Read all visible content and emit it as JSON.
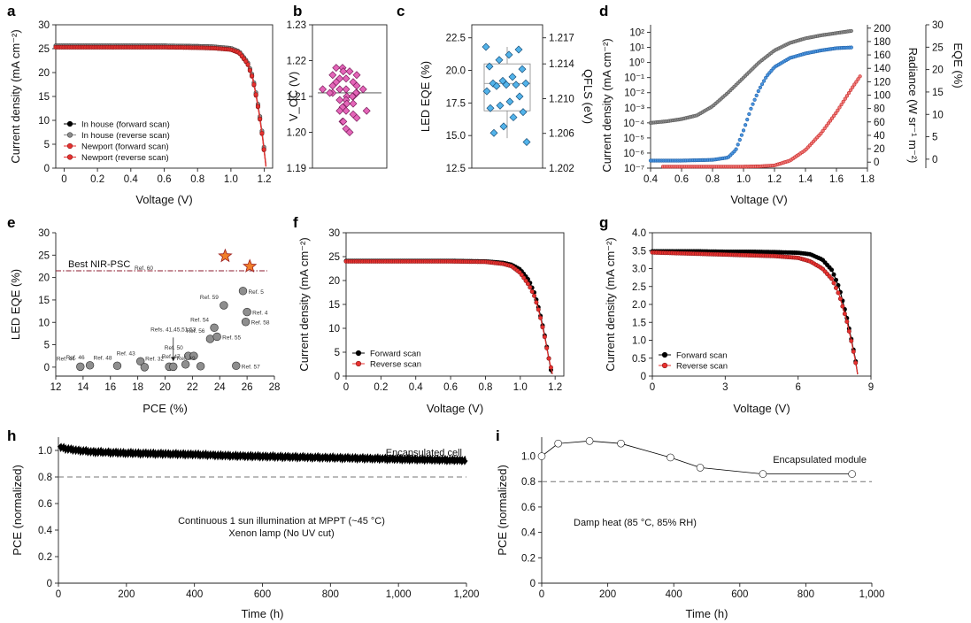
{
  "figure": {
    "panels": [
      "a",
      "b",
      "c",
      "d",
      "e",
      "f",
      "g",
      "h",
      "i"
    ]
  },
  "chart_data": [
    {
      "panel": "a",
      "type": "line",
      "xlabel": "Voltage (V)",
      "ylabel": "Current density (mA cm⁻²)",
      "xlim": [
        -0.05,
        1.25
      ],
      "ylim": [
        0,
        30
      ],
      "xticks": [
        "0",
        "0.2",
        "0.4",
        "0.6",
        "0.8",
        "1.0",
        "1.2"
      ],
      "yticks": [
        "0",
        "5",
        "10",
        "15",
        "20",
        "25",
        "30"
      ],
      "legend": "lower-left",
      "series": [
        {
          "name": "In house (forward scan)",
          "color": "#000000",
          "x": [
            -0.05,
            0,
            0.2,
            0.4,
            0.6,
            0.8,
            0.9,
            1.0,
            1.05,
            1.1,
            1.13,
            1.15,
            1.17,
            1.19,
            1.2,
            1.21
          ],
          "y": [
            25.6,
            25.6,
            25.6,
            25.6,
            25.6,
            25.5,
            25.4,
            25.0,
            24.3,
            22.0,
            19.0,
            15.5,
            11.5,
            6.5,
            3.5,
            0.5
          ]
        },
        {
          "name": "In house (reverse scan)",
          "color": "#8c8c8c",
          "x": [
            -0.05,
            0,
            0.2,
            0.4,
            0.6,
            0.8,
            0.9,
            1.0,
            1.05,
            1.1,
            1.13,
            1.15,
            1.17,
            1.19,
            1.2,
            1.21
          ],
          "y": [
            25.6,
            25.6,
            25.6,
            25.6,
            25.6,
            25.5,
            25.4,
            25.1,
            24.4,
            22.2,
            19.3,
            15.8,
            11.8,
            6.8,
            3.8,
            0.6
          ]
        },
        {
          "name": "Newport (forward scan)",
          "color": "#e8312f",
          "x": [
            -0.05,
            0,
            0.2,
            0.4,
            0.6,
            0.8,
            0.9,
            1.0,
            1.05,
            1.1,
            1.13,
            1.15,
            1.17,
            1.19,
            1.2,
            1.21
          ],
          "y": [
            25.3,
            25.3,
            25.3,
            25.3,
            25.3,
            25.2,
            25.1,
            24.8,
            24.1,
            21.8,
            18.8,
            15.2,
            11.2,
            6.2,
            3.2,
            0.3
          ]
        },
        {
          "name": "Newport (reverse scan)",
          "color": "#e8312f",
          "x": [
            -0.05,
            0,
            0.2,
            0.4,
            0.6,
            0.8,
            0.9,
            1.0,
            1.05,
            1.1,
            1.13,
            1.15,
            1.17,
            1.19,
            1.2,
            1.21
          ],
          "y": [
            25.3,
            25.3,
            25.3,
            25.3,
            25.3,
            25.2,
            25.1,
            24.8,
            24.2,
            21.9,
            18.9,
            15.4,
            11.3,
            6.3,
            3.3,
            0.4
          ]
        }
      ]
    },
    {
      "panel": "b",
      "type": "scatter",
      "ylabel": "V_OC (V)",
      "ylim": [
        1.19,
        1.23
      ],
      "yticks": [
        "1.19",
        "1.20",
        "1.21",
        "1.22",
        "1.23"
      ],
      "values": [
        1.218,
        1.218,
        1.217,
        1.217,
        1.216,
        1.216,
        1.215,
        1.215,
        1.214,
        1.213,
        1.213,
        1.212,
        1.212,
        1.212,
        1.211,
        1.211,
        1.211,
        1.211,
        1.21,
        1.21,
        1.21,
        1.209,
        1.209,
        1.208,
        1.208,
        1.207,
        1.206,
        1.206,
        1.205,
        1.204,
        1.203,
        1.201,
        1.2,
        1.203,
        1.206,
        1.212,
        1.214
      ]
    },
    {
      "panel": "c",
      "type": "scatter",
      "ylabel": "LED EQE (%)",
      "ylabel_right": "QFLS (eV)",
      "ylim": [
        12.5,
        23.5
      ],
      "ylim_right": [
        1.202,
        1.2185
      ],
      "yticks": [
        "12.5",
        "15.0",
        "17.5",
        "20.0",
        "22.5"
      ],
      "yticks_right": [
        "1.202",
        "1.206",
        "1.210",
        "1.214",
        "1.217"
      ],
      "box": {
        "q1": 16.9,
        "median": 19.0,
        "q3": 20.5,
        "whisker_low": 14.8,
        "whisker_high": 21.8
      },
      "values": [
        21.8,
        21.6,
        21.2,
        20.8,
        20.3,
        20.1,
        19.5,
        19.2,
        19.0,
        19.0,
        18.9,
        18.9,
        18.8,
        18.4,
        18.0,
        17.6,
        17.3,
        17.1,
        16.8,
        16.4,
        15.7,
        15.2,
        14.5
      ]
    },
    {
      "panel": "d",
      "type": "line",
      "xlabel": "Voltage (V)",
      "ylabel": "Current density (mA cm⁻²)",
      "ylabel_right1": "Radiance (W sr⁻¹ m⁻²)",
      "ylabel_right2": "EQE (%)",
      "xlim": [
        0.4,
        1.8
      ],
      "ylim_log": [
        -7,
        2.5
      ],
      "xticks": [
        "0.4",
        "0.6",
        "0.8",
        "1.0",
        "1.2",
        "1.4",
        "1.6",
        "1.8"
      ],
      "yticks": [
        "10⁻⁷",
        "10⁻⁶",
        "10⁻⁵",
        "10⁻⁴",
        "10⁻³",
        "10⁻²",
        "10⁻¹",
        "10⁰",
        "10¹",
        "10²"
      ],
      "yticks_right1": [
        "0",
        "20",
        "40",
        "60",
        "80",
        "100",
        "120",
        "140",
        "160",
        "180",
        "200"
      ],
      "yticks_right2": [
        "0",
        "5",
        "10",
        "15",
        "20",
        "25",
        "30"
      ],
      "series": [
        {
          "name": "Current density",
          "color": "#6b6b6b",
          "x": [
            0.4,
            0.5,
            0.6,
            0.7,
            0.8,
            0.9,
            1.0,
            1.1,
            1.2,
            1.3,
            1.4,
            1.5,
            1.6,
            1.7
          ],
          "log10_y": [
            -4.0,
            -3.9,
            -3.75,
            -3.5,
            -2.9,
            -2.0,
            -1.0,
            0.0,
            0.8,
            1.3,
            1.6,
            1.8,
            1.95,
            2.1
          ]
        },
        {
          "name": "EQE",
          "color": "#2f7fd8",
          "x": [
            0.4,
            0.6,
            0.8,
            0.9,
            0.95,
            1.0,
            1.05,
            1.1,
            1.15,
            1.2,
            1.3,
            1.4,
            1.5,
            1.6,
            1.7
          ],
          "log10_y": [
            -6.5,
            -6.5,
            -6.45,
            -6.3,
            -5.8,
            -4.5,
            -3.0,
            -1.8,
            -0.9,
            -0.3,
            0.3,
            0.6,
            0.8,
            0.95,
            1.0
          ]
        },
        {
          "name": "Radiance",
          "color": "#e8312f",
          "x": [
            0.48,
            0.8,
            1.0,
            1.1,
            1.2,
            1.3,
            1.4,
            1.5,
            1.6,
            1.7,
            1.76
          ],
          "log10_y": [
            -6.9,
            -6.9,
            -6.9,
            -6.88,
            -6.82,
            -6.5,
            -5.8,
            -4.7,
            -3.3,
            -1.7,
            -0.8
          ]
        }
      ]
    },
    {
      "panel": "e",
      "type": "scatter",
      "xlabel": "PCE (%)",
      "ylabel": "LED EQE (%)",
      "xlim": [
        12,
        28
      ],
      "ylim": [
        -2,
        30
      ],
      "xticks": [
        "12",
        "14",
        "16",
        "18",
        "20",
        "22",
        "24",
        "26",
        "28"
      ],
      "yticks": [
        "0",
        "5",
        "10",
        "15",
        "20",
        "25",
        "30"
      ],
      "reference_line": {
        "label": "Best NIR-PSC",
        "ref": "Ref. 60",
        "y": 21.5
      },
      "stars": [
        {
          "x": 24.4,
          "y": 24.8
        },
        {
          "x": 26.2,
          "y": 22.5
        }
      ],
      "points": [
        {
          "x": 13.8,
          "y": 0.1,
          "label": "Ref. 44"
        },
        {
          "x": 14.5,
          "y": 0.4,
          "label": "Ref. 46"
        },
        {
          "x": 16.5,
          "y": 0.3,
          "label": "Ref. 48"
        },
        {
          "x": 18.2,
          "y": 1.3,
          "label": "Ref. 43"
        },
        {
          "x": 18.5,
          "y": 0.0,
          "label": ""
        },
        {
          "x": 20.3,
          "y": 0.1,
          "label": "Ref. 32"
        },
        {
          "x": 20.6,
          "y": 0.1,
          "label": "Refs. 41,45,51,53"
        },
        {
          "x": 21.5,
          "y": 0.6,
          "label": "Ref. 47"
        },
        {
          "x": 21.7,
          "y": 2.5,
          "label": "Ref. 50"
        },
        {
          "x": 22.1,
          "y": 2.5,
          "label": ""
        },
        {
          "x": 22.6,
          "y": 0.2,
          "label": "Ref. 49"
        },
        {
          "x": 23.3,
          "y": 6.3,
          "label": "Ref. 56"
        },
        {
          "x": 23.6,
          "y": 8.8,
          "label": "Ref. 54"
        },
        {
          "x": 23.8,
          "y": 6.8,
          "label": "Ref. 55"
        },
        {
          "x": 24.3,
          "y": 13.8,
          "label": "Ref. 59"
        },
        {
          "x": 25.2,
          "y": 0.3,
          "label": "Ref. 57"
        },
        {
          "x": 25.7,
          "y": 17.0,
          "label": "Ref. 5"
        },
        {
          "x": 25.9,
          "y": 10.1,
          "label": "Ref. 58"
        },
        {
          "x": 26.0,
          "y": 12.3,
          "label": "Ref. 4"
        }
      ]
    },
    {
      "panel": "f",
      "type": "line",
      "xlabel": "Voltage (V)",
      "ylabel": "Current density (mA cm⁻²)",
      "xlim": [
        0,
        1.25
      ],
      "ylim": [
        0,
        30
      ],
      "xticks": [
        "0",
        "0.2",
        "0.4",
        "0.6",
        "0.8",
        "1.0",
        "1.2"
      ],
      "yticks": [
        "0",
        "5",
        "10",
        "15",
        "20",
        "25",
        "30"
      ],
      "legend": "lower-left",
      "series": [
        {
          "name": "Forward scan",
          "color": "#000000",
          "x": [
            0,
            0.2,
            0.4,
            0.6,
            0.8,
            0.9,
            0.95,
            1.0,
            1.05,
            1.08,
            1.1,
            1.12,
            1.14,
            1.16,
            1.18
          ],
          "y": [
            24.1,
            24.1,
            24.1,
            24.1,
            24.0,
            23.7,
            23.3,
            22.3,
            20.0,
            17.5,
            15.0,
            12.0,
            8.5,
            4.5,
            0.5
          ]
        },
        {
          "name": "Reverse scan",
          "color": "#e8312f",
          "x": [
            0,
            0.2,
            0.4,
            0.6,
            0.8,
            0.9,
            0.95,
            1.0,
            1.05,
            1.08,
            1.1,
            1.12,
            1.14,
            1.16,
            1.185
          ],
          "y": [
            24.0,
            24.0,
            24.0,
            24.0,
            23.9,
            23.5,
            23.0,
            21.6,
            19.0,
            16.8,
            14.5,
            11.6,
            8.2,
            4.3,
            0.4
          ]
        }
      ]
    },
    {
      "panel": "g",
      "type": "line",
      "xlabel": "Voltage (V)",
      "ylabel": "Current density (mA cm⁻²)",
      "xlim": [
        0,
        9
      ],
      "ylim": [
        0,
        4.0
      ],
      "xticks": [
        "0",
        "3",
        "6",
        "9"
      ],
      "yticks": [
        "0",
        "0.5",
        "1.0",
        "1.5",
        "2.0",
        "2.5",
        "3.0",
        "3.5",
        "4.0"
      ],
      "legend": "lower-left",
      "series": [
        {
          "name": "Forward scan",
          "color": "#000000",
          "x": [
            0,
            1,
            2,
            3,
            4,
            5,
            6,
            6.5,
            7,
            7.4,
            7.7,
            8.0,
            8.2,
            8.35,
            8.45
          ],
          "y": [
            3.48,
            3.48,
            3.48,
            3.47,
            3.47,
            3.46,
            3.44,
            3.4,
            3.25,
            2.95,
            2.45,
            1.65,
            1.0,
            0.5,
            0.05
          ]
        },
        {
          "name": "Reverse scan",
          "color": "#e8312f",
          "x": [
            0,
            1,
            2,
            3,
            4,
            5,
            6,
            6.5,
            7,
            7.4,
            7.7,
            8.0,
            8.2,
            8.35,
            8.45
          ],
          "y": [
            3.45,
            3.43,
            3.41,
            3.39,
            3.37,
            3.35,
            3.3,
            3.2,
            3.0,
            2.7,
            2.25,
            1.55,
            0.95,
            0.45,
            0.05
          ]
        }
      ]
    },
    {
      "panel": "h",
      "type": "line",
      "xlabel": "Time (h)",
      "ylabel": "PCE (normalized)",
      "xlim": [
        0,
        1200
      ],
      "ylim": [
        0,
        1.1
      ],
      "xticks": [
        "0",
        "200",
        "400",
        "600",
        "800",
        "1,000",
        "1,200"
      ],
      "yticks": [
        "0",
        "0.2",
        "0.4",
        "0.6",
        "0.8",
        "1.0"
      ],
      "reference_line": {
        "y": 0.8
      },
      "annotations": [
        "Encapsulated cell",
        "Continuous 1 sun illumination at MPPT (~45 °C)",
        "Xenon lamp (No UV cut)"
      ],
      "series": [
        {
          "name": "Encapsulated cell",
          "color": "#000000",
          "x": [
            0,
            10,
            30,
            60,
            100,
            200,
            300,
            400,
            500,
            600,
            700,
            800,
            900,
            1000,
            1100,
            1200
          ],
          "y": [
            1.03,
            1.02,
            1.01,
            1.0,
            0.99,
            0.98,
            0.975,
            0.97,
            0.96,
            0.955,
            0.95,
            0.945,
            0.94,
            0.935,
            0.93,
            0.925
          ]
        }
      ]
    },
    {
      "panel": "i",
      "type": "line",
      "xlabel": "Time (h)",
      "ylabel": "PCE (normalized)",
      "xlim": [
        0,
        1000
      ],
      "ylim": [
        0,
        1.15
      ],
      "xticks": [
        "0",
        "200",
        "400",
        "600",
        "800",
        "1,000"
      ],
      "yticks": [
        "0",
        "0.2",
        "0.4",
        "0.6",
        "0.8",
        "1.0"
      ],
      "reference_line": {
        "y": 0.8
      },
      "annotations": [
        "Encapsulated module",
        "Damp heat (85 °C, 85% RH)"
      ],
      "series": [
        {
          "name": "Encapsulated module",
          "color": "#000000",
          "x": [
            0,
            50,
            145,
            240,
            390,
            480,
            670,
            940
          ],
          "y": [
            1.0,
            1.1,
            1.12,
            1.1,
            0.99,
            0.91,
            0.86,
            0.86
          ]
        }
      ]
    }
  ]
}
